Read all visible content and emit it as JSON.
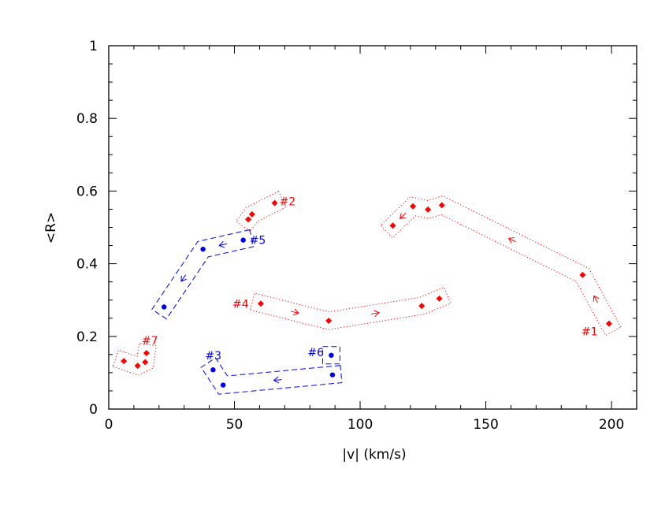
{
  "chart_data": {
    "type": "scatter",
    "title": "",
    "xlabel": "|v|  (km/s)",
    "ylabel": "<R>",
    "xlim": [
      0,
      210
    ],
    "ylim": [
      0,
      1
    ],
    "xticks": [
      "0",
      "50",
      "100",
      "150",
      "200"
    ],
    "yticks": [
      "0",
      "0.2",
      "0.4",
      "0.6",
      "0.8",
      "1"
    ],
    "grid": false,
    "colors": {
      "red": "#ff0000",
      "blue": "#0000ee"
    },
    "series": [
      {
        "label": "#1",
        "color": "red",
        "marker": "diamond",
        "outline": "dotted",
        "points": [
          [
            199,
            0.235
          ],
          [
            188.5,
            0.369
          ],
          [
            132.5,
            0.561
          ],
          [
            127,
            0.549
          ],
          [
            121,
            0.558
          ],
          [
            113,
            0.505
          ]
        ]
      },
      {
        "label": "#2",
        "color": "red",
        "marker": "diamond",
        "outline": "dotted",
        "points": [
          [
            66,
            0.567
          ],
          [
            57,
            0.536
          ],
          [
            55.5,
            0.522
          ]
        ]
      },
      {
        "label": "#3",
        "color": "blue",
        "marker": "circle",
        "outline": "dashed",
        "points": [
          [
            89,
            0.094
          ],
          [
            45.5,
            0.066
          ],
          [
            41.5,
            0.108
          ]
        ]
      },
      {
        "label": "#4",
        "color": "red",
        "marker": "diamond",
        "outline": "dotted",
        "points": [
          [
            60.5,
            0.29
          ],
          [
            87.5,
            0.243
          ],
          [
            124.5,
            0.284
          ],
          [
            131.5,
            0.304
          ]
        ]
      },
      {
        "label": "#5",
        "color": "blue",
        "marker": "circle",
        "outline": "dashed",
        "points": [
          [
            53.5,
            0.465
          ],
          [
            37.5,
            0.44
          ],
          [
            22,
            0.281
          ]
        ]
      },
      {
        "label": "#6",
        "color": "blue",
        "marker": "circle",
        "outline": "dashed",
        "points": [
          [
            88.5,
            0.148
          ]
        ]
      },
      {
        "label": "#7",
        "color": "red",
        "marker": "diamond",
        "outline": "dotted",
        "points": [
          [
            6,
            0.132
          ],
          [
            11.5,
            0.119
          ],
          [
            14.5,
            0.129
          ],
          [
            15,
            0.154
          ]
        ]
      }
    ]
  }
}
